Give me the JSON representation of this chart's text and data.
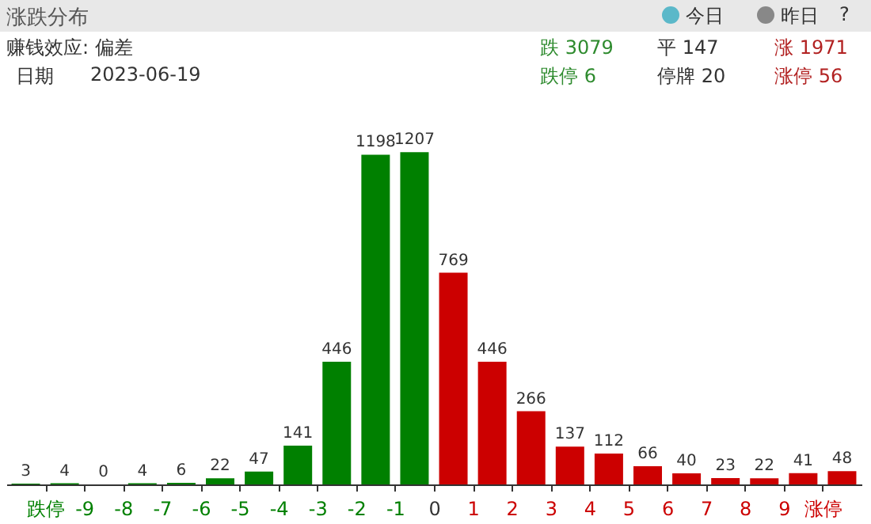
{
  "chart_data": {
    "type": "bar",
    "title": "涨跌分布",
    "annotations": [
      "赚钱效应: 偏差",
      "日期",
      "2023-06-19",
      "跌 3079",
      "平 147",
      "涨 1971",
      "跌停 6",
      "停牌 20",
      "涨停 56",
      "今日",
      "昨日",
      "?"
    ],
    "x": [
      -10.5,
      -9.5,
      -8.5,
      -7.5,
      -6.5,
      -5.5,
      -4.5,
      -3.5,
      -2.5,
      -1.5,
      -0.5,
      0.5,
      1.5,
      2.5,
      3.5,
      4.5,
      5.5,
      6.5,
      7.5,
      8.5,
      9.5,
      10.5
    ],
    "values": [
      3,
      4,
      0,
      4,
      6,
      22,
      47,
      141,
      446,
      1198,
      1207,
      769,
      446,
      266,
      137,
      112,
      66,
      40,
      23,
      22,
      41,
      48
    ],
    "colors": [
      "#008000",
      "#008000",
      "#008000",
      "#008000",
      "#008000",
      "#008000",
      "#008000",
      "#008000",
      "#008000",
      "#008000",
      "#008000",
      "#cc0000",
      "#cc0000",
      "#cc0000",
      "#cc0000",
      "#cc0000",
      "#cc0000",
      "#cc0000",
      "#cc0000",
      "#cc0000",
      "#cc0000",
      "#cc0000"
    ],
    "xlim": [
      -11,
      11
    ],
    "xticks": [
      {
        "value": -10,
        "label": "跌停"
      },
      -9,
      -8,
      -7,
      -6,
      -5,
      -4,
      -3,
      -2,
      -1,
      0,
      1,
      2,
      3,
      4,
      5,
      6,
      7,
      8,
      9,
      {
        "value": 10,
        "label": "涨停"
      }
    ],
    "data_labels": true
  }
}
